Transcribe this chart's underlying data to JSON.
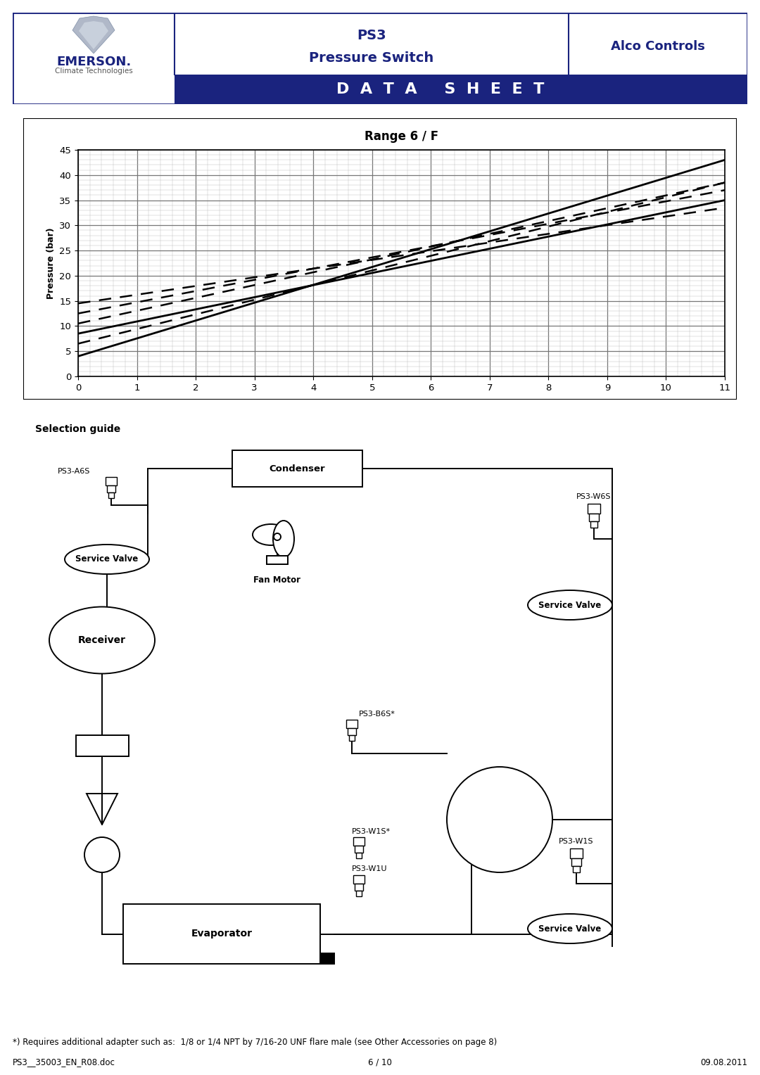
{
  "title_line1": "PS3",
  "title_line2": "Pressure Switch",
  "company": "Alco Controls",
  "brand": "EMERSON.",
  "brand_sub": "Climate Technologies",
  "datasheet": "D  A  T  A     S  H  E  E  T",
  "page_num": "6 / 10",
  "doc_id": "PS3__35003_EN_R08.doc",
  "date": "09.08.2011",
  "chart_title": "Range 6 / F",
  "ylabel": "Pressure (bar)",
  "xlim": [
    0,
    11
  ],
  "ylim": [
    0,
    45
  ],
  "x_ticks": [
    0,
    1,
    2,
    3,
    4,
    5,
    6,
    7,
    8,
    9,
    10,
    11
  ],
  "y_ticks": [
    0,
    5,
    10,
    15,
    20,
    25,
    30,
    35,
    40,
    45
  ],
  "lines": [
    {
      "x": [
        0,
        11
      ],
      "y": [
        4.0,
        43.0
      ],
      "style": "solid",
      "lw": 2.0
    },
    {
      "x": [
        0,
        11
      ],
      "y": [
        6.5,
        38.5
      ],
      "style": "dashed",
      "lw": 1.8
    },
    {
      "x": [
        0,
        11
      ],
      "y": [
        8.5,
        35.0
      ],
      "style": "solid",
      "lw": 2.0
    },
    {
      "x": [
        0,
        11
      ],
      "y": [
        10.5,
        38.5
      ],
      "style": "dashed",
      "lw": 1.8
    },
    {
      "x": [
        0,
        11
      ],
      "y": [
        12.5,
        37.0
      ],
      "style": "dashed",
      "lw": 1.8
    },
    {
      "x": [
        0,
        11
      ],
      "y": [
        14.5,
        33.5
      ],
      "style": "dashed",
      "lw": 1.8
    }
  ],
  "selection_guide_title": "Selection guide",
  "footnote": "*) Requires additional adapter such as:  1/8 or 1/4 NPT by 7/16-20 UNF flare male (see Other Accessories on page 8)",
  "blue_color": "#1a237e",
  "header_border": "#1a3a8f"
}
